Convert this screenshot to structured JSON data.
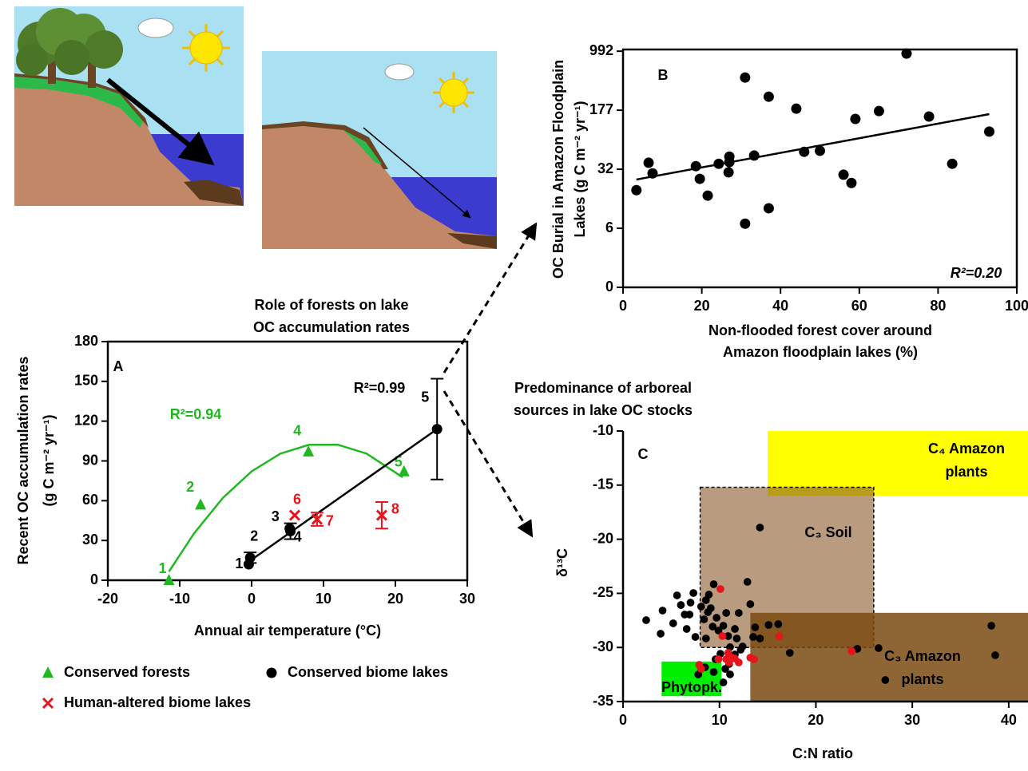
{
  "chart_data": [
    {
      "type": "scatter",
      "panel": "A",
      "caption": [
        "Role of forests on lake",
        "OC accumulation rates"
      ],
      "xlabel": "Annual air temperature (°C)",
      "ylabel": [
        "Recent OC accumulation rates",
        "(g C m⁻² yr⁻¹)"
      ],
      "xlim": [
        -20,
        30
      ],
      "xticks": [
        -20,
        -10,
        0,
        10,
        20,
        30
      ],
      "ylim": [
        0,
        180
      ],
      "yticks": [
        0,
        30,
        60,
        90,
        120,
        150,
        180
      ],
      "legend": "bottom-left",
      "series": [
        {
          "name": "Conserved forests",
          "color": "#1fb81f",
          "marker": "triangle",
          "x": [
            -11.5,
            -7.1,
            7.9,
            21.2
          ],
          "y": [
            0,
            57,
            97,
            82
          ],
          "point_labels": [
            "1",
            "2",
            "4",
            "5"
          ],
          "fit": {
            "label": "R²=0.94",
            "x": [
              -11.5,
              -8,
              -4,
              0,
              4,
              8,
              12,
              16,
              21
            ],
            "y": [
              6.5,
              35.4,
              62.1,
              82.1,
              95.5,
              102.2,
              102.2,
              95.5,
              77.7
            ]
          }
        },
        {
          "name": "Conserved biome lakes",
          "color": "#000000",
          "marker": "circle",
          "x": [
            -0.4,
            -0.2,
            5.3,
            5.4,
            25.8
          ],
          "y": [
            12,
            17,
            39,
            37,
            114
          ],
          "err": [
            null,
            4,
            null,
            6,
            38
          ],
          "point_labels": [
            "1",
            "2",
            "3",
            "4",
            "5"
          ],
          "fit": {
            "label": "R²=0.99",
            "x": [
              -0.4,
              25.8
            ],
            "y": [
              14,
              114
            ]
          }
        },
        {
          "name": "Human-altered biome lakes",
          "color": "#e8141c",
          "marker": "x",
          "x": [
            6.0,
            9.1,
            18.1
          ],
          "y": [
            49,
            46,
            49
          ],
          "err": [
            null,
            5,
            10
          ],
          "point_labels": [
            "6",
            "7",
            "8"
          ]
        }
      ]
    },
    {
      "type": "scatter",
      "panel": "B",
      "xlabel": [
        "Non-flooded forest cover around",
        "Amazon floodplain lakes (%)"
      ],
      "ylabel": [
        "OC Burial in Amazon Floodplain",
        "Lakes (g C m⁻² yr⁻¹)"
      ],
      "xlim": [
        0,
        100
      ],
      "xticks": [
        0,
        20,
        40,
        60,
        80,
        100
      ],
      "ylim": [
        0,
        6.95
      ],
      "yticks": [
        0,
        {
          "value": 1.725,
          "label": "6"
        },
        {
          "value": 3.45,
          "label": "32"
        },
        {
          "value": 5.175,
          "label": "177"
        },
        {
          "value": 6.9,
          "label": "992"
        }
      ],
      "series": [
        {
          "color": "#000000",
          "marker": "circle",
          "x": [
            3.4,
            6.5,
            7.5,
            18.5,
            19.5,
            21.5,
            24.3,
            27,
            27,
            26.8,
            31,
            31,
            33.3,
            37,
            37,
            44,
            46,
            50,
            56,
            58,
            59,
            65,
            72,
            77.7,
            83.6,
            93
          ],
          "y": [
            2.84,
            3.64,
            3.33,
            3.54,
            3.17,
            2.68,
            3.61,
            3.82,
            3.66,
            3.36,
            6.13,
            1.86,
            3.85,
            5.57,
            2.31,
            5.22,
            3.96,
            3.99,
            3.29,
            3.05,
            4.92,
            5.15,
            6.83,
            4.99,
            3.61,
            4.55
          ],
          "fit": {
            "label": "R²=0.20",
            "x": [
              3.4,
              93
            ],
            "y": [
              3.15,
              5.06
            ]
          }
        }
      ]
    },
    {
      "type": "scatter",
      "panel": "C",
      "caption": [
        "Predominance of arboreal",
        "sources in lake OC stocks"
      ],
      "xlabel": "C:N ratio",
      "ylabel": "δ¹³C",
      "xlim": [
        0,
        42
      ],
      "xticks": [
        0,
        10,
        20,
        30,
        40
      ],
      "ylim": [
        -35,
        -10
      ],
      "yticks": [
        -35,
        -30,
        -25,
        -20,
        -15,
        -10
      ],
      "regions": [
        {
          "label": [
            "C₄ Amazon",
            "plants"
          ],
          "color": "#ffff00",
          "alpha": 1,
          "x": [
            15,
            42
          ],
          "y": [
            -16,
            -10
          ]
        },
        {
          "label": [
            "C₃ Soil"
          ],
          "color": "#8b5a2b",
          "alpha": 0.6,
          "dashed": true,
          "x": [
            8,
            26
          ],
          "y": [
            -30,
            -15.2
          ]
        },
        {
          "label": [
            "C₃ Amazon",
            "plants"
          ],
          "color": "#7a4a10",
          "alpha": 0.85,
          "x": [
            13.2,
            42
          ],
          "y": [
            -35,
            -26.8
          ]
        },
        {
          "label": [
            "Phytopk."
          ],
          "color": "#00ee00",
          "alpha": 1,
          "x": [
            4,
            10.2
          ],
          "y": [
            -34.5,
            -31.3
          ]
        }
      ],
      "series": [
        {
          "color": "#000000",
          "marker": "circle",
          "x": [
            2.4,
            3.9,
            4.1,
            5.2,
            5.6,
            6.0,
            6.4,
            6.6,
            6.9,
            7.5,
            7.0,
            7.3,
            8.1,
            8.4,
            8.6,
            8.8,
            9.1,
            9.3,
            8.9,
            8.6,
            9.4,
            9.7,
            9.9,
            10.4,
            10.7,
            10.9,
            11.1,
            11.6,
            11.8,
            12.2,
            12.4,
            12.9,
            13.2,
            13.5,
            13.7,
            14.2,
            12.0,
            9.6,
            10.1,
            10.6,
            11.1,
            11.6,
            14.2,
            15.1,
            16.1,
            17.3,
            24.3,
            26.5,
            27.2,
            38.2,
            38.6,
            7.8,
            8.5,
            9.4,
            10.4,
            11.0
          ],
          "y": [
            -27.48,
            -28.73,
            -26.59,
            -27.77,
            -25.19,
            -26.08,
            -26.96,
            -28.29,
            -26.96,
            -29.03,
            -25.86,
            -24.97,
            -26.22,
            -27.4,
            -25.63,
            -26.74,
            -26.37,
            -28.07,
            -25.12,
            -29.17,
            -24.16,
            -27.26,
            -28.44,
            -27.99,
            -26.81,
            -28.95,
            -29.98,
            -28.29,
            -29.17,
            -30.21,
            -29.91,
            -23.94,
            -26.0,
            -29.03,
            -28.14,
            -29.17,
            -26.81,
            -31.09,
            -30.58,
            -31.98,
            -32.49,
            -30.65,
            -18.92,
            -27.92,
            -27.85,
            -30.5,
            -30.13,
            -30.06,
            -33.01,
            -27.99,
            -30.72,
            -32.49,
            -31.83,
            -32.27,
            -33.23,
            -31.53
          ]
        },
        {
          "color": "#e8141c",
          "marker": "circle",
          "x": [
            7.9,
            8.1,
            9.9,
            10.1,
            10.3,
            10.7,
            11.0,
            11.3,
            11.6,
            12.0,
            13.2,
            13.6,
            16.2,
            23.7,
            10.9
          ],
          "y": [
            -31.61,
            -31.98,
            -31.09,
            -24.6,
            -28.95,
            -31.09,
            -31.39,
            -30.94,
            -31.02,
            -31.39,
            -30.94,
            -31.09,
            -28.95,
            -30.35,
            -30.5
          ]
        }
      ]
    }
  ]
}
